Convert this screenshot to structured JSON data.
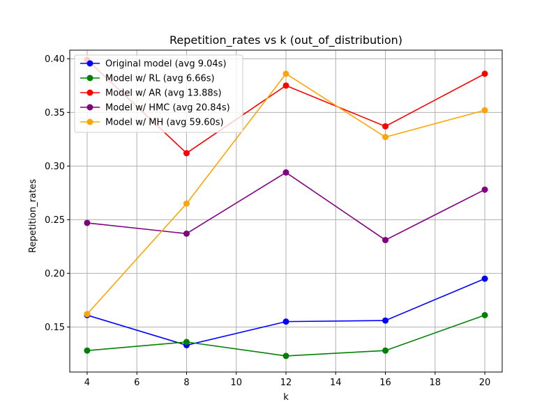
{
  "chart_data": {
    "type": "line",
    "title": "Repetition_rates vs k (out_of_distribution)",
    "xlabel": "k",
    "ylabel": "Repetition_rates",
    "x": [
      4,
      8,
      12,
      16,
      20
    ],
    "xlim": [
      3.3,
      20.7
    ],
    "ylim": [
      0.108,
      0.408
    ],
    "xticks": [
      4,
      6,
      8,
      10,
      12,
      14,
      16,
      18,
      20
    ],
    "yticks": [
      0.15,
      0.2,
      0.25,
      0.3,
      0.35,
      0.4
    ],
    "ytick_labels": [
      "0.15",
      "0.20",
      "0.25",
      "0.30",
      "0.35",
      "0.40"
    ],
    "grid": true,
    "legend_position": "top-left",
    "series": [
      {
        "name": "Original model (avg 9.04s)",
        "color": "#0000ff",
        "values": [
          0.161,
          0.133,
          0.155,
          0.156,
          0.195
        ]
      },
      {
        "name": "Model w/ RL (avg 6.66s)",
        "color": "#008000",
        "values": [
          0.128,
          0.136,
          0.123,
          0.128,
          0.161
        ]
      },
      {
        "name": "Model w/ AR (avg 13.88s)",
        "color": "#ff0000",
        "values": [
          0.399,
          0.312,
          0.375,
          0.337,
          0.386
        ]
      },
      {
        "name": "Model w/ HMC (avg 20.84s)",
        "color": "#800080",
        "values": [
          0.247,
          0.237,
          0.294,
          0.231,
          0.278
        ]
      },
      {
        "name": "Model w/ MH (avg 59.60s)",
        "color": "#ffa500",
        "values": [
          0.162,
          0.265,
          0.386,
          0.327,
          0.352
        ]
      }
    ]
  }
}
